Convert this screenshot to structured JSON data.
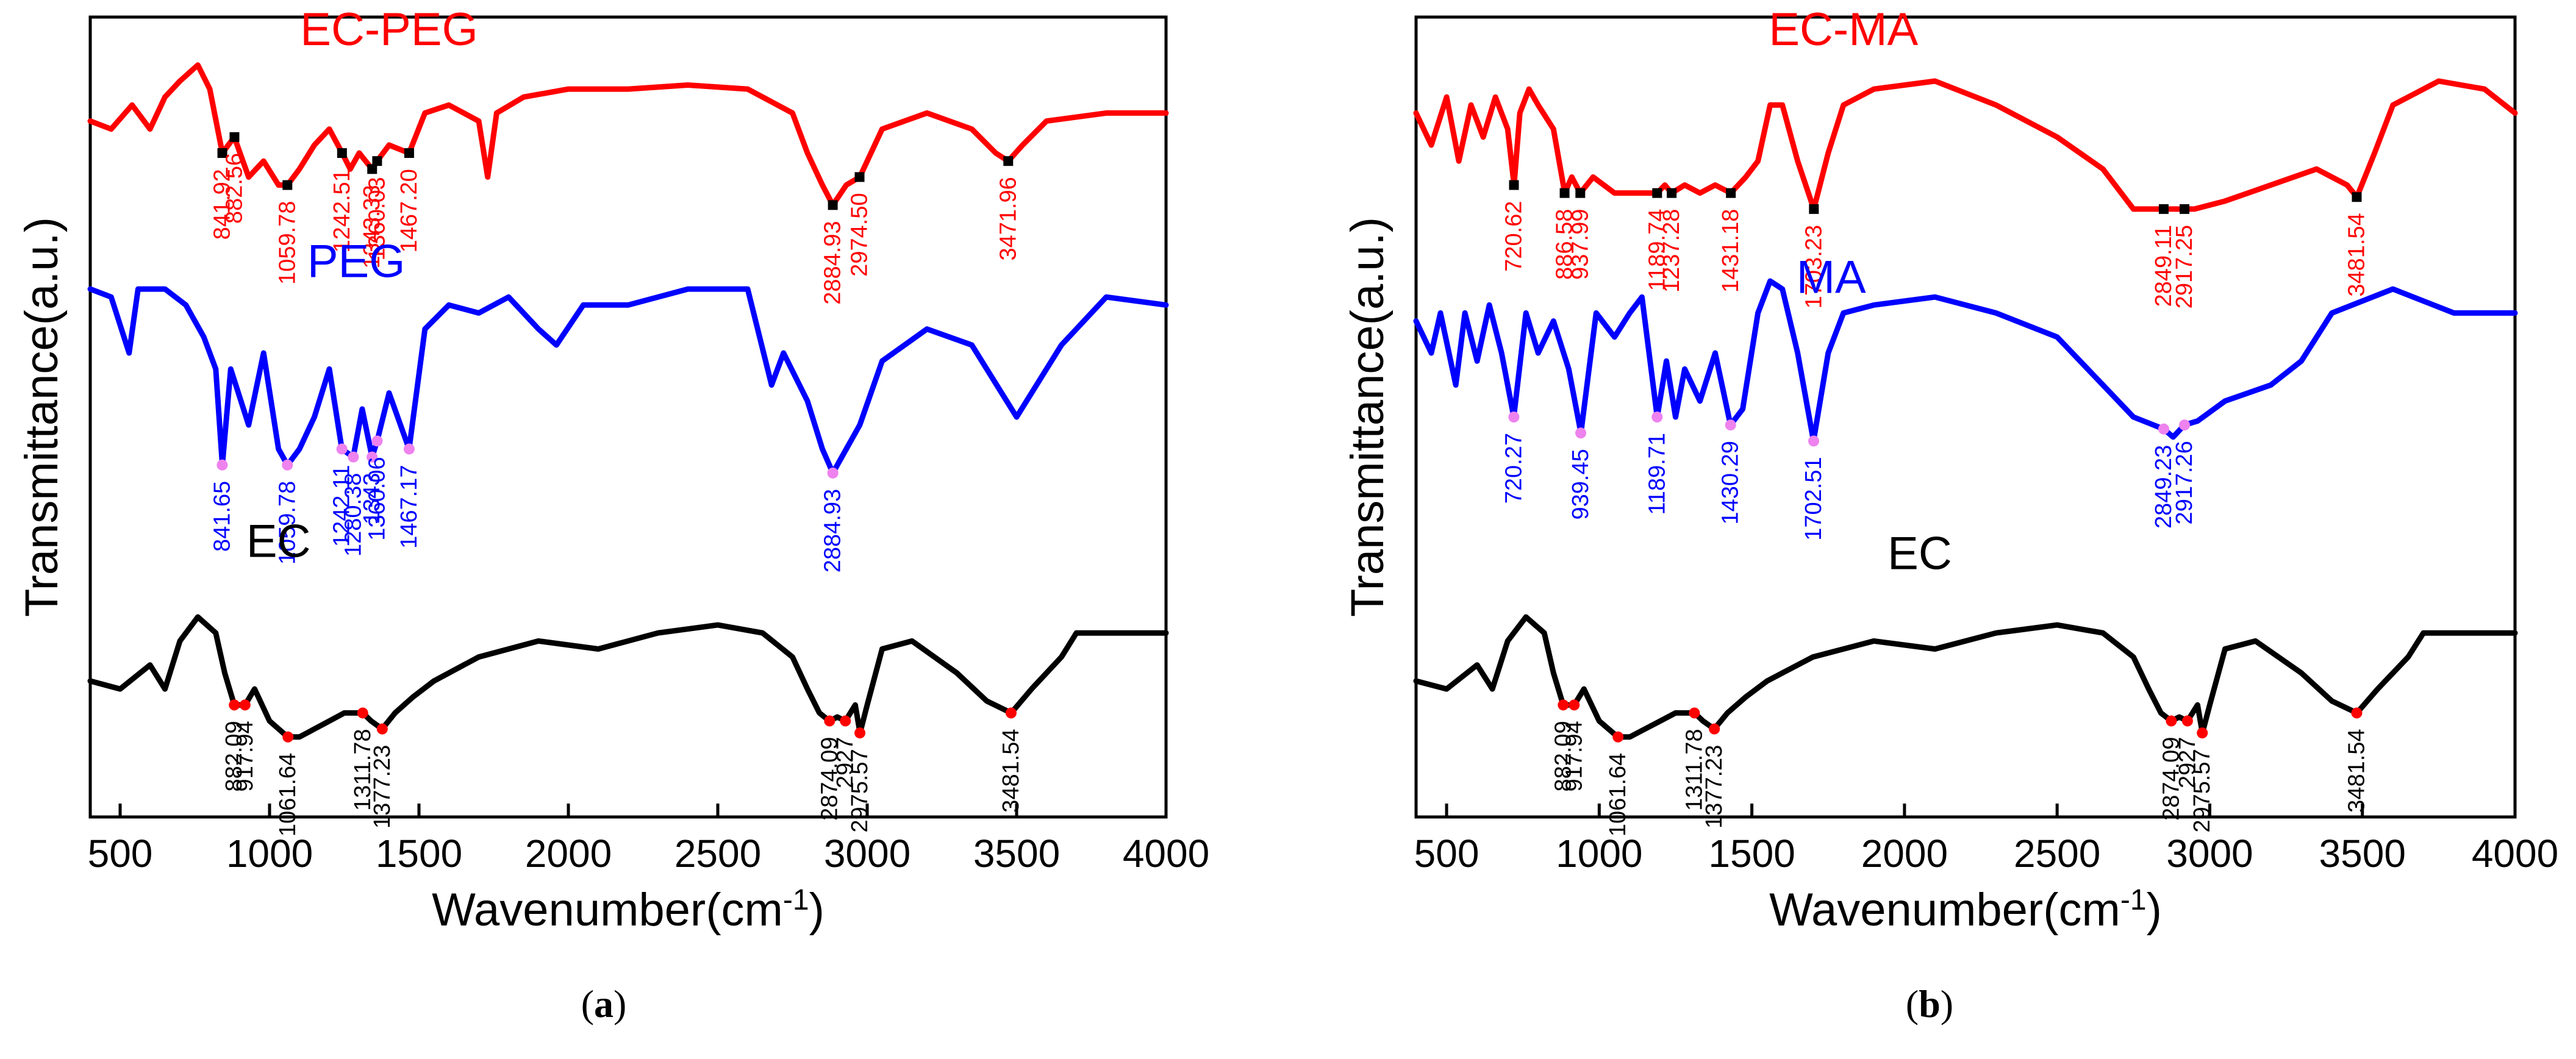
{
  "chart_data": [
    {
      "type": "line",
      "panel_label": "a",
      "xlabel": "Wavenumber(cm",
      "xlabel_sup": "-1",
      "xlabel_close": ")",
      "ylabel": "Transmittance(a.u.)",
      "xlim": [
        400,
        4000
      ],
      "ylim": [
        0,
        10
      ],
      "xticks": [
        500,
        1000,
        1500,
        2000,
        2500,
        3000,
        3500,
        4000
      ],
      "series": [
        {
          "name": "EC-PEG",
          "color": "#ff0000",
          "marker_color": "#000000",
          "label_x": 1400,
          "label_y": 9.65,
          "x": [
            400,
            470,
            540,
            600,
            650,
            700,
            760,
            800,
            842,
            882,
            930,
            980,
            1030,
            1060,
            1100,
            1150,
            1200,
            1243,
            1270,
            1300,
            1343,
            1360,
            1400,
            1467,
            1520,
            1600,
            1700,
            1730,
            1760,
            1850,
            2000,
            2200,
            2400,
            2600,
            2750,
            2800,
            2850,
            2885,
            2930,
            2975,
            3050,
            3200,
            3350,
            3430,
            3472,
            3520,
            3600,
            3800,
            4000
          ],
          "y": [
            8.7,
            8.6,
            8.9,
            8.6,
            9.0,
            9.2,
            9.4,
            9.1,
            8.3,
            8.5,
            8.0,
            8.2,
            7.9,
            7.9,
            8.1,
            8.4,
            8.6,
            8.3,
            8.1,
            8.3,
            8.1,
            8.2,
            8.4,
            8.3,
            8.8,
            8.9,
            8.7,
            8.0,
            8.8,
            9.0,
            9.1,
            9.1,
            9.15,
            9.1,
            8.8,
            8.3,
            7.9,
            7.65,
            7.9,
            8.0,
            8.6,
            8.8,
            8.6,
            8.3,
            8.2,
            8.4,
            8.7,
            8.8,
            8.8
          ],
          "peaks": [
            {
              "x": 841.92,
              "y": 8.3,
              "label": "841.92"
            },
            {
              "x": 882.56,
              "y": 8.5,
              "label": "882.56"
            },
            {
              "x": 1059.78,
              "y": 7.9,
              "label": "1059.78"
            },
            {
              "x": 1242.51,
              "y": 8.3,
              "label": "1242.51"
            },
            {
              "x": 1343.33,
              "y": 8.1,
              "label": "1343.33"
            },
            {
              "x": 1360.03,
              "y": 8.2,
              "label": "1360.03"
            },
            {
              "x": 1467.2,
              "y": 8.3,
              "label": "1467.20"
            },
            {
              "x": 2884.93,
              "y": 7.65,
              "label": "2884.93"
            },
            {
              "x": 2974.5,
              "y": 8.0,
              "label": "2974.50"
            },
            {
              "x": 3471.96,
              "y": 8.2,
              "label": "3471.96"
            }
          ]
        },
        {
          "name": "PEG",
          "color": "#0000ff",
          "marker_color": "#ee82ee",
          "label_x": 1290,
          "label_y": 6.75,
          "x": [
            400,
            470,
            530,
            560,
            650,
            720,
            780,
            820,
            842,
            870,
            930,
            980,
            1030,
            1060,
            1100,
            1150,
            1200,
            1242,
            1280,
            1310,
            1343,
            1360,
            1400,
            1467,
            1520,
            1600,
            1700,
            1800,
            1900,
            1960,
            2050,
            2200,
            2400,
            2600,
            2680,
            2720,
            2800,
            2850,
            2885,
            2930,
            2975,
            3050,
            3200,
            3350,
            3500,
            3650,
            3800,
            4000
          ],
          "y": [
            6.6,
            6.5,
            5.8,
            6.6,
            6.6,
            6.4,
            6.0,
            5.6,
            4.4,
            5.6,
            4.9,
            5.8,
            4.6,
            4.4,
            4.6,
            5.0,
            5.6,
            4.6,
            4.5,
            5.1,
            4.5,
            4.7,
            5.3,
            4.6,
            6.1,
            6.4,
            6.3,
            6.5,
            6.1,
            5.9,
            6.4,
            6.4,
            6.6,
            6.6,
            5.4,
            5.8,
            5.2,
            4.6,
            4.3,
            4.6,
            4.9,
            5.7,
            6.1,
            5.9,
            5.0,
            5.9,
            6.5,
            6.4
          ],
          "peaks": [
            {
              "x": 841.65,
              "y": 4.4,
              "label": "841.65"
            },
            {
              "x": 1059.78,
              "y": 4.4,
              "label": "1059.78"
            },
            {
              "x": 1242.11,
              "y": 4.6,
              "label": "1242.11"
            },
            {
              "x": 1280.38,
              "y": 4.5,
              "label": "1280.38"
            },
            {
              "x": 1343,
              "y": 4.5,
              "label": "1343"
            },
            {
              "x": 1360.06,
              "y": 4.7,
              "label": "1360.06"
            },
            {
              "x": 1467.17,
              "y": 4.6,
              "label": "1467.17"
            },
            {
              "x": 2884.93,
              "y": 4.3,
              "label": "2884.93"
            }
          ]
        },
        {
          "name": "EC",
          "color": "#000000",
          "marker_color": "#ff0000",
          "label_x": 1030,
          "label_y": 3.25,
          "x": [
            400,
            500,
            600,
            650,
            700,
            760,
            820,
            850,
            882,
            918,
            950,
            1000,
            1061,
            1100,
            1150,
            1200,
            1250,
            1312,
            1340,
            1377,
            1420,
            1480,
            1550,
            1700,
            1900,
            2100,
            2300,
            2500,
            2650,
            2750,
            2800,
            2840,
            2874,
            2900,
            2927,
            2960,
            2976,
            3000,
            3050,
            3150,
            3300,
            3400,
            3482,
            3550,
            3650,
            3700,
            3800,
            4000
          ],
          "y": [
            1.7,
            1.6,
            1.9,
            1.6,
            2.2,
            2.5,
            2.3,
            1.8,
            1.4,
            1.4,
            1.6,
            1.2,
            1.0,
            1.0,
            1.1,
            1.2,
            1.3,
            1.3,
            1.2,
            1.1,
            1.3,
            1.5,
            1.7,
            2.0,
            2.2,
            2.1,
            2.3,
            2.4,
            2.3,
            2.0,
            1.6,
            1.3,
            1.2,
            1.25,
            1.2,
            1.4,
            1.05,
            1.4,
            2.1,
            2.2,
            1.8,
            1.45,
            1.3,
            1.6,
            2.0,
            2.3,
            2.3,
            2.3
          ],
          "peaks": [
            {
              "x": 882.09,
              "y": 1.4,
              "label": "882.09"
            },
            {
              "x": 917.94,
              "y": 1.4,
              "label": "917.94"
            },
            {
              "x": 1061.64,
              "y": 1.0,
              "label": "1061.64"
            },
            {
              "x": 1311.78,
              "y": 1.3,
              "label": "1311.78"
            },
            {
              "x": 1377.23,
              "y": 1.1,
              "label": "1377.23"
            },
            {
              "x": 2874.09,
              "y": 1.2,
              "label": "2874.09"
            },
            {
              "x": 2927,
              "y": 1.2,
              "label": "2927"
            },
            {
              "x": 2975.57,
              "y": 1.05,
              "label": "2975.57"
            },
            {
              "x": 3481.54,
              "y": 1.3,
              "label": "3481.54"
            }
          ]
        }
      ]
    },
    {
      "type": "line",
      "panel_label": "b",
      "xlabel": "Wavenumber(cm",
      "xlabel_sup": "-1",
      "xlabel_close": ")",
      "ylabel": "Transmittance(a.u.)",
      "xlim": [
        400,
        4000
      ],
      "ylim": [
        0,
        10
      ],
      "xticks": [
        500,
        1000,
        1500,
        2000,
        2500,
        3000,
        3500,
        4000
      ],
      "series": [
        {
          "name": "EC-MA",
          "color": "#ff0000",
          "marker_color": "#000000",
          "label_x": 1800,
          "label_y": 9.65,
          "x": [
            400,
            450,
            500,
            540,
            580,
            620,
            660,
            700,
            721,
            740,
            770,
            800,
            850,
            887,
            910,
            938,
            980,
            1050,
            1100,
            1150,
            1190,
            1215,
            1237,
            1280,
            1330,
            1380,
            1431,
            1480,
            1520,
            1560,
            1600,
            1650,
            1703,
            1750,
            1800,
            1900,
            2100,
            2300,
            2500,
            2650,
            2750,
            2849,
            2880,
            2917,
            2950,
            3050,
            3200,
            3350,
            3450,
            3482,
            3540,
            3600,
            3750,
            3900,
            4000
          ],
          "y": [
            8.8,
            8.4,
            9.0,
            8.2,
            8.9,
            8.5,
            9.0,
            8.6,
            7.9,
            8.8,
            9.1,
            8.9,
            8.6,
            7.8,
            8.0,
            7.8,
            8.0,
            7.8,
            7.8,
            7.8,
            7.8,
            7.9,
            7.8,
            7.9,
            7.8,
            7.9,
            7.8,
            8.0,
            8.2,
            8.9,
            8.9,
            8.2,
            7.6,
            8.3,
            8.9,
            9.1,
            9.2,
            8.9,
            8.5,
            8.1,
            7.6,
            7.6,
            7.6,
            7.6,
            7.6,
            7.7,
            7.9,
            8.1,
            7.9,
            7.75,
            8.3,
            8.9,
            9.2,
            9.1,
            8.8
          ],
          "peaks": [
            {
              "x": 720.62,
              "y": 7.9,
              "label": "720.62"
            },
            {
              "x": 886.58,
              "y": 7.8,
              "label": "886.58"
            },
            {
              "x": 937.99,
              "y": 7.8,
              "label": "937.99"
            },
            {
              "x": 1189.74,
              "y": 7.8,
              "label": "1189.74"
            },
            {
              "x": 1237.28,
              "y": 7.8,
              "label": "1237.28"
            },
            {
              "x": 1431.18,
              "y": 7.8,
              "label": "1431.18"
            },
            {
              "x": 1703.23,
              "y": 7.6,
              "label": "1703.23"
            },
            {
              "x": 2849.11,
              "y": 7.6,
              "label": "2849.11"
            },
            {
              "x": 2917.25,
              "y": 7.6,
              "label": "2917.25"
            },
            {
              "x": 3481.54,
              "y": 7.75,
              "label": "3481.54"
            }
          ]
        },
        {
          "name": "MA",
          "color": "#0000ff",
          "marker_color": "#ee82ee",
          "label_x": 1760,
          "label_y": 6.55,
          "x": [
            400,
            450,
            480,
            530,
            560,
            600,
            640,
            680,
            720,
            760,
            800,
            850,
            900,
            940,
            990,
            1050,
            1100,
            1140,
            1190,
            1220,
            1250,
            1280,
            1330,
            1380,
            1430,
            1470,
            1520,
            1560,
            1600,
            1650,
            1702,
            1750,
            1800,
            1900,
            2100,
            2300,
            2500,
            2650,
            2750,
            2849,
            2880,
            2917,
            2960,
            3050,
            3200,
            3300,
            3400,
            3600,
            3800,
            4000
          ],
          "y": [
            6.2,
            5.8,
            6.3,
            5.4,
            6.3,
            5.7,
            6.4,
            5.8,
            5.0,
            6.3,
            5.8,
            6.2,
            5.6,
            4.8,
            6.3,
            6.0,
            6.3,
            6.5,
            5.0,
            5.7,
            5.0,
            5.6,
            5.2,
            5.8,
            4.9,
            5.1,
            6.3,
            6.7,
            6.6,
            5.8,
            4.7,
            5.8,
            6.3,
            6.4,
            6.5,
            6.3,
            6.0,
            5.4,
            5.0,
            4.85,
            4.75,
            4.9,
            4.95,
            5.2,
            5.4,
            5.7,
            6.3,
            6.6,
            6.3,
            6.3
          ],
          "peaks": [
            {
              "x": 720.27,
              "y": 5.0,
              "label": "720.27"
            },
            {
              "x": 939.45,
              "y": 4.8,
              "label": "939.45"
            },
            {
              "x": 1189.71,
              "y": 5.0,
              "label": "1189.71"
            },
            {
              "x": 1430.29,
              "y": 4.9,
              "label": "1430.29"
            },
            {
              "x": 1702.51,
              "y": 4.7,
              "label": "1702.51"
            },
            {
              "x": 2849.23,
              "y": 4.85,
              "label": "2849.23"
            },
            {
              "x": 2917.26,
              "y": 4.9,
              "label": "2917.26"
            }
          ]
        },
        {
          "name": "EC",
          "color": "#000000",
          "marker_color": "#ff0000",
          "label_x": 2050,
          "label_y": 3.1,
          "x": [
            400,
            500,
            600,
            650,
            700,
            760,
            820,
            850,
            882,
            918,
            950,
            1000,
            1061,
            1100,
            1150,
            1200,
            1250,
            1312,
            1340,
            1377,
            1420,
            1480,
            1550,
            1700,
            1900,
            2100,
            2300,
            2500,
            2650,
            2750,
            2800,
            2840,
            2874,
            2900,
            2927,
            2960,
            2976,
            3000,
            3050,
            3150,
            3300,
            3400,
            3482,
            3550,
            3650,
            3700,
            3800,
            4000
          ],
          "y": [
            1.7,
            1.6,
            1.9,
            1.6,
            2.2,
            2.5,
            2.3,
            1.8,
            1.4,
            1.4,
            1.6,
            1.2,
            1.0,
            1.0,
            1.1,
            1.2,
            1.3,
            1.3,
            1.2,
            1.1,
            1.3,
            1.5,
            1.7,
            2.0,
            2.2,
            2.1,
            2.3,
            2.4,
            2.3,
            2.0,
            1.6,
            1.3,
            1.2,
            1.25,
            1.2,
            1.4,
            1.05,
            1.4,
            2.1,
            2.2,
            1.8,
            1.45,
            1.3,
            1.6,
            2.0,
            2.3,
            2.3,
            2.3
          ],
          "peaks": [
            {
              "x": 882.09,
              "y": 1.4,
              "label": "882.09"
            },
            {
              "x": 917.94,
              "y": 1.4,
              "label": "917.94"
            },
            {
              "x": 1061.64,
              "y": 1.0,
              "label": "1061.64"
            },
            {
              "x": 1311.78,
              "y": 1.3,
              "label": "1311.78"
            },
            {
              "x": 1377.23,
              "y": 1.1,
              "label": "1377.23"
            },
            {
              "x": 2874.09,
              "y": 1.2,
              "label": "2874.09"
            },
            {
              "x": 2927,
              "y": 1.2,
              "label": "2927"
            },
            {
              "x": 2975.57,
              "y": 1.05,
              "label": "2975.57"
            },
            {
              "x": 3481.54,
              "y": 1.3,
              "label": "3481.54"
            }
          ]
        }
      ]
    }
  ]
}
